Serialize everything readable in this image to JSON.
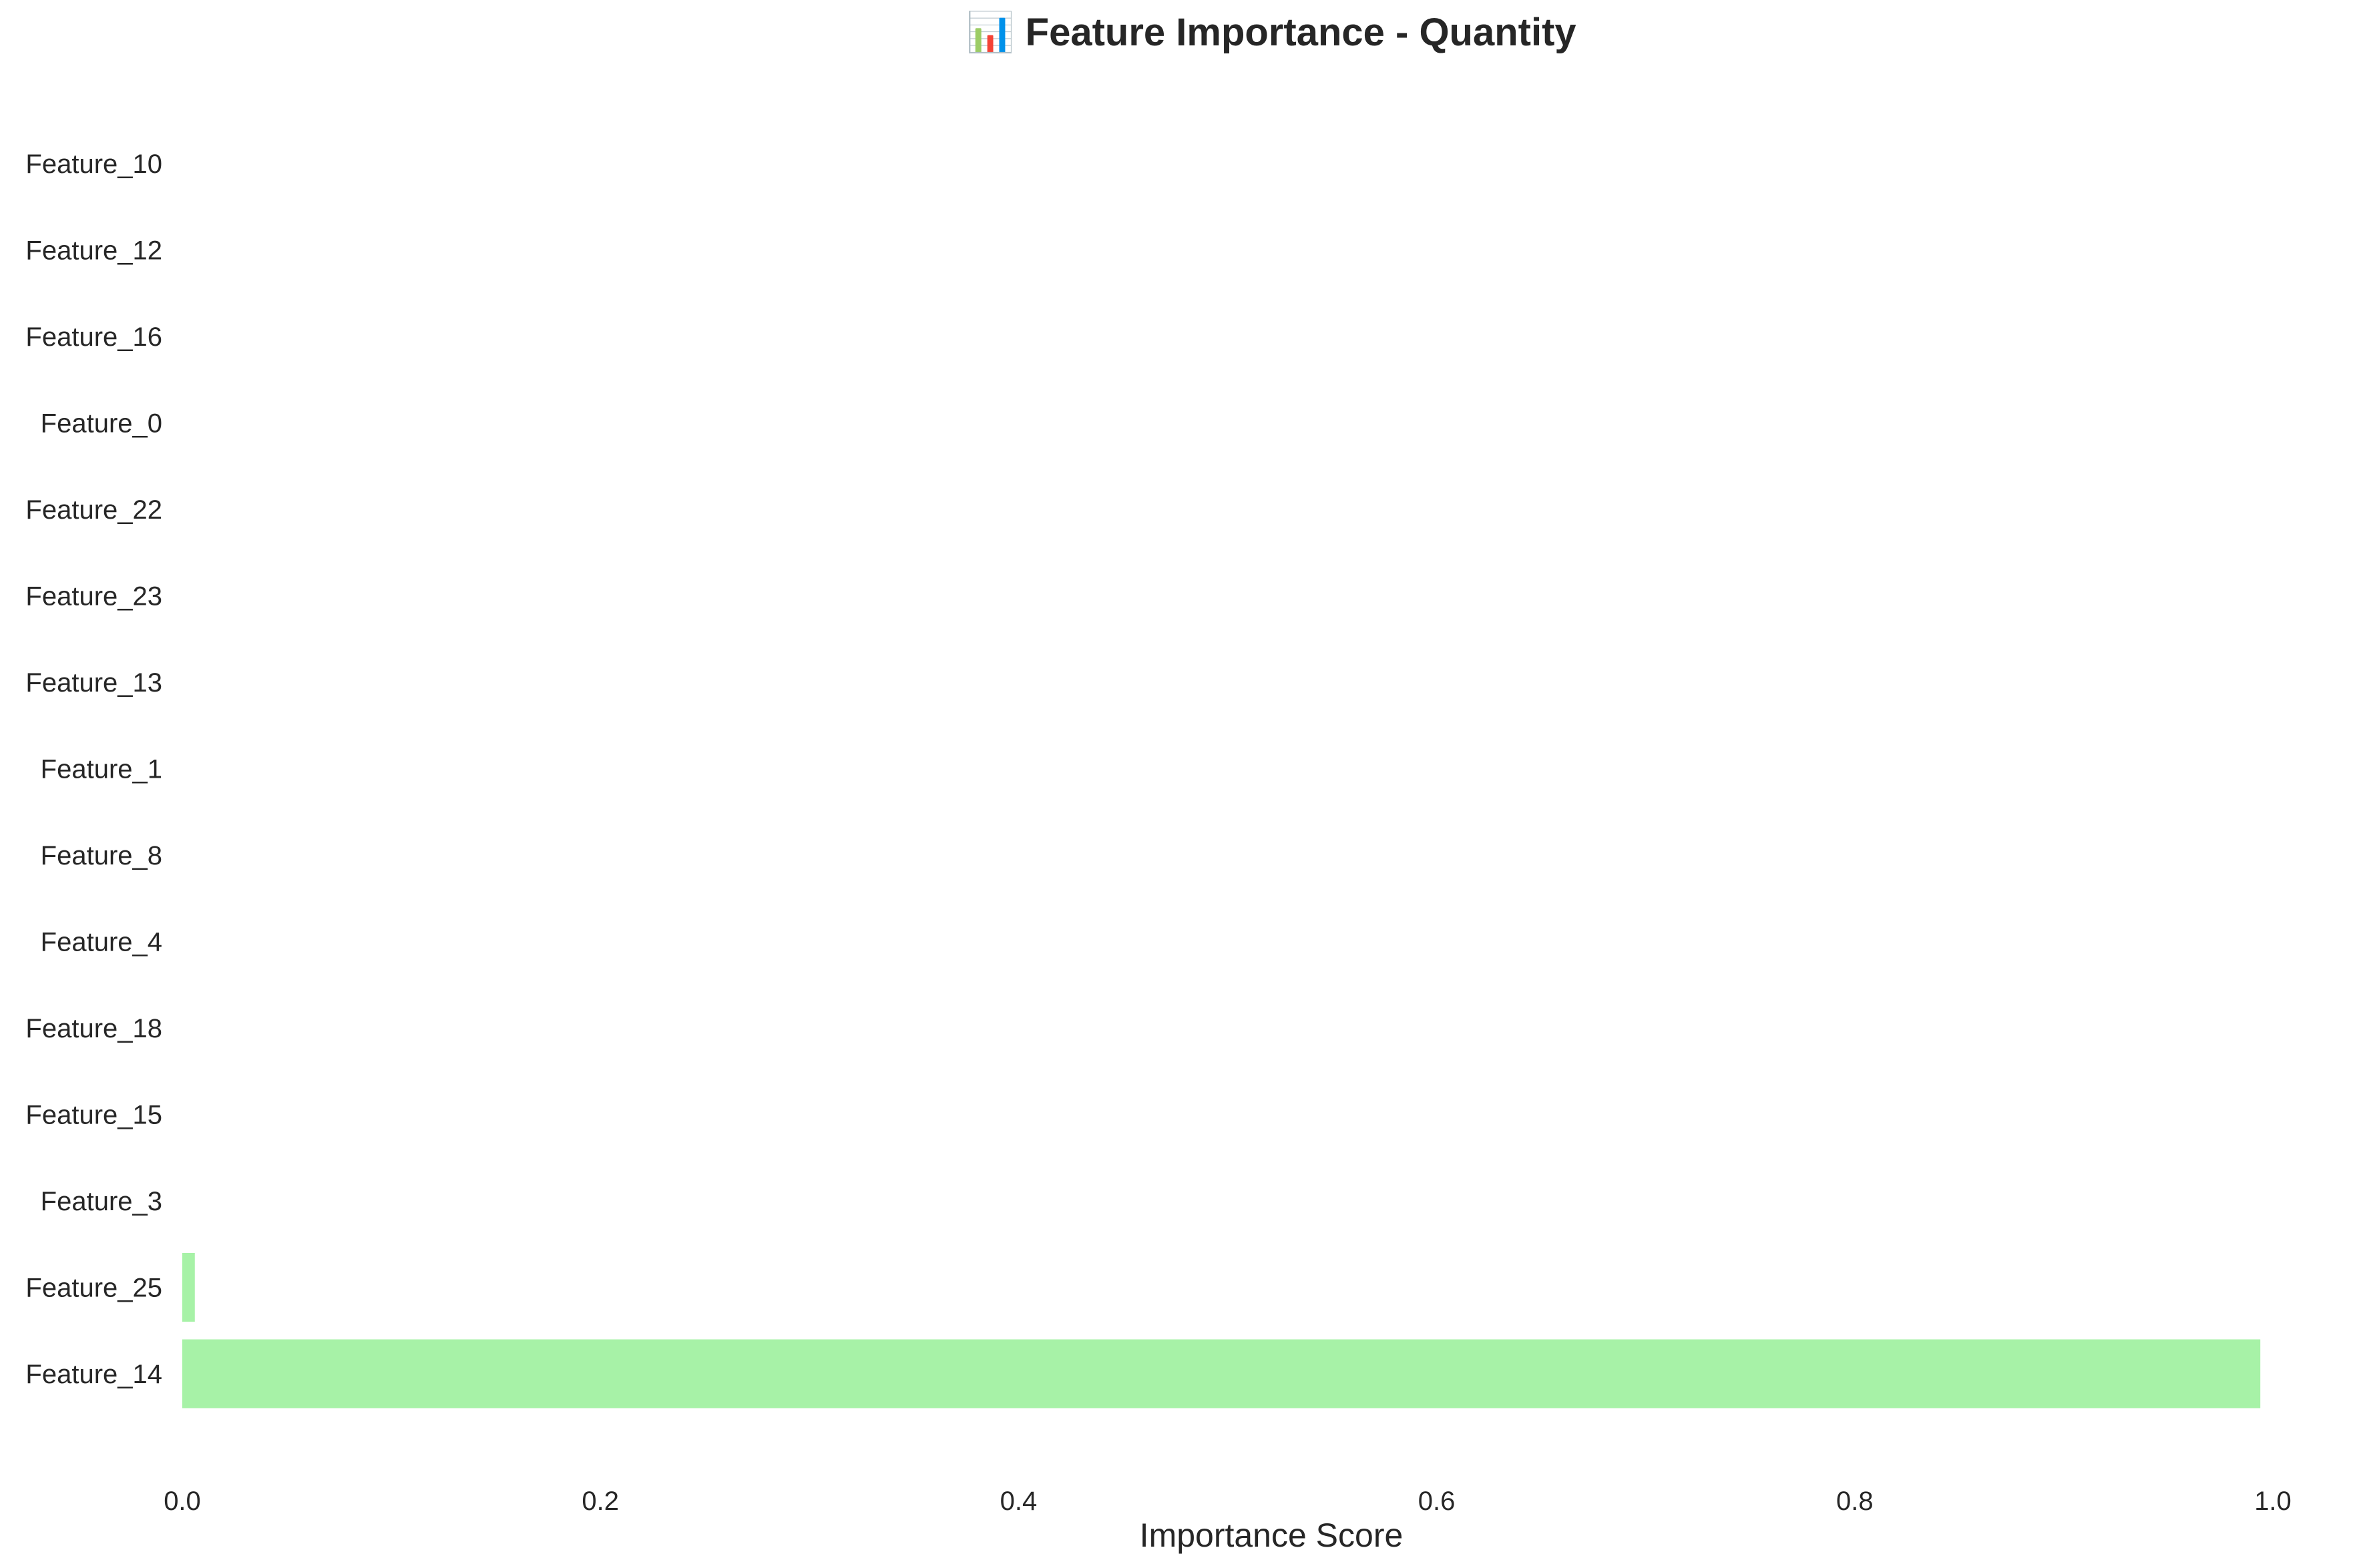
{
  "chart_data": {
    "type": "bar",
    "orientation": "horizontal",
    "title": "📊 Feature Importance - Quantity",
    "xlabel": "Importance Score",
    "ylabel": "",
    "categories": [
      "Feature_10",
      "Feature_12",
      "Feature_16",
      "Feature_0",
      "Feature_22",
      "Feature_23",
      "Feature_13",
      "Feature_1",
      "Feature_8",
      "Feature_4",
      "Feature_18",
      "Feature_15",
      "Feature_3",
      "Feature_25",
      "Feature_14"
    ],
    "values": [
      0,
      0,
      0,
      0,
      0,
      0,
      0,
      0,
      0,
      0,
      0,
      0,
      0,
      0.006,
      0.994
    ],
    "xlim": [
      0,
      1
    ],
    "xticks": [
      0.0,
      0.2,
      0.4,
      0.6,
      0.8,
      1.0
    ],
    "xtick_labels": [
      "0.0",
      "0.2",
      "0.4",
      "0.6",
      "0.8",
      "1.0"
    ],
    "bar_color": "#a7f2a7",
    "grid": false
  }
}
